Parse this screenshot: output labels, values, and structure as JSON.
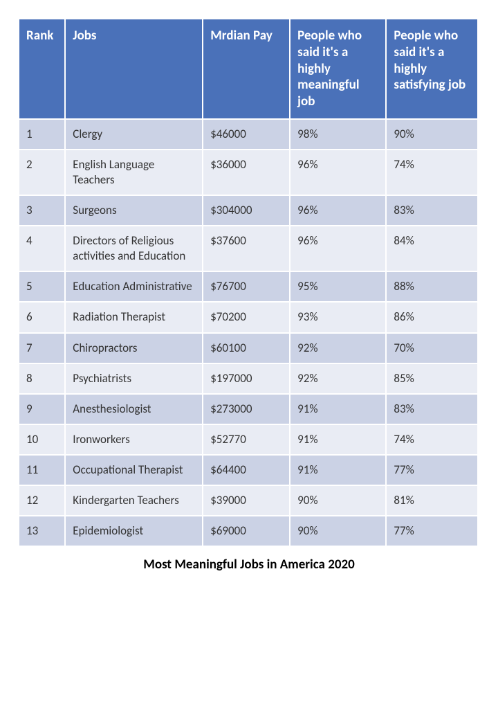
{
  "table": {
    "header_bg": "#4a71b9",
    "header_fg": "#ffffff",
    "row_bg_odd": "#cbd2e5",
    "row_bg_even": "#e9ecf4",
    "body_fg": "#333333",
    "border_color": "#ffffff",
    "col_widths_pct": [
      10,
      30,
      19,
      21,
      20
    ],
    "columns": [
      "Rank",
      "Jobs",
      "Mrdian Pay",
      "People who said it's a highly meaningful job",
      "People who said it's a highly satisfying job"
    ],
    "rows": [
      [
        "1",
        "Clergy",
        "$46000",
        "98%",
        "90%"
      ],
      [
        "2",
        "English Language Teachers",
        "$36000",
        "96%",
        "74%"
      ],
      [
        "3",
        "Surgeons",
        "$304000",
        "96%",
        "83%"
      ],
      [
        "4",
        "Directors of Religious activities and Education",
        "$37600",
        "96%",
        "84%"
      ],
      [
        "5",
        "Education Administrative",
        "$76700",
        "95%",
        "88%"
      ],
      [
        "6",
        "Radiation Therapist",
        "$70200",
        "93%",
        "86%"
      ],
      [
        "7",
        "Chiropractors",
        "$60100",
        "92%",
        "70%"
      ],
      [
        "8",
        "Psychiatrists",
        "$197000",
        "92%",
        "85%"
      ],
      [
        "9",
        "Anesthesiologist",
        "$273000",
        "91%",
        "83%"
      ],
      [
        "10",
        "Ironworkers",
        "$52770",
        "91%",
        "74%"
      ],
      [
        "11",
        "Occupational Therapist",
        "$64400",
        "91%",
        "77%"
      ],
      [
        "12",
        "Kindergarten Teachers",
        "$39000",
        "90%",
        "81%"
      ],
      [
        "13",
        "Epidemiologist",
        "$69000",
        "90%",
        "77%"
      ]
    ],
    "caption": "Most Meaningful Jobs in America 2020"
  }
}
